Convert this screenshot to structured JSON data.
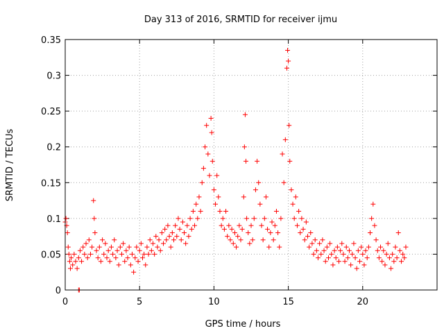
{
  "chart_data": {
    "type": "scatter",
    "title": "Day 313 of 2016, SRMTID for receiver ijmu",
    "xlabel": "GPS time / hours",
    "ylabel": "SRMTID / TECUs",
    "xlim": [
      0,
      25
    ],
    "ylim": [
      0,
      0.35
    ],
    "x_ticks": [
      0,
      5,
      10,
      15,
      20
    ],
    "x_tick_labels": [
      "0",
      "5",
      "10",
      "15",
      "20"
    ],
    "y_ticks": [
      0,
      0.05,
      0.1,
      0.15,
      0.2,
      0.25,
      0.3,
      0.35
    ],
    "y_tick_labels": [
      "0",
      "0.05",
      "0.1",
      "0.15",
      "0.2",
      "0.25",
      "0.3",
      "0.35"
    ],
    "grid": true,
    "marker": "+",
    "series": [
      {
        "name": "SRMTID",
        "color": "#ff0000",
        "points": [
          [
            0.0,
            0.095
          ],
          [
            0.05,
            0.1
          ],
          [
            0.1,
            0.09
          ],
          [
            0.15,
            0.08
          ],
          [
            0.2,
            0.06
          ],
          [
            0.25,
            0.05
          ],
          [
            0.3,
            0.04
          ],
          [
            0.35,
            0.03
          ],
          [
            0.4,
            0.045
          ],
          [
            0.5,
            0.035
          ],
          [
            0.6,
            0.05
          ],
          [
            0.7,
            0.04
          ],
          [
            0.8,
            0.03
          ],
          [
            0.9,
            0.045
          ],
          [
            1.0,
            0.055
          ],
          [
            1.1,
            0.04
          ],
          [
            1.2,
            0.06
          ],
          [
            1.3,
            0.05
          ],
          [
            1.4,
            0.065
          ],
          [
            1.5,
            0.045
          ],
          [
            1.6,
            0.07
          ],
          [
            1.7,
            0.05
          ],
          [
            1.8,
            0.06
          ],
          [
            1.9,
            0.125
          ],
          [
            1.95,
            0.1
          ],
          [
            2.0,
            0.08
          ],
          [
            2.1,
            0.055
          ],
          [
            2.2,
            0.045
          ],
          [
            2.3,
            0.06
          ],
          [
            2.4,
            0.04
          ],
          [
            2.5,
            0.07
          ],
          [
            2.6,
            0.05
          ],
          [
            2.7,
            0.065
          ],
          [
            2.8,
            0.045
          ],
          [
            2.9,
            0.055
          ],
          [
            3.0,
            0.04
          ],
          [
            3.1,
            0.06
          ],
          [
            3.2,
            0.05
          ],
          [
            3.3,
            0.07
          ],
          [
            3.4,
            0.045
          ],
          [
            3.5,
            0.055
          ],
          [
            3.6,
            0.035
          ],
          [
            3.7,
            0.06
          ],
          [
            3.8,
            0.05
          ],
          [
            3.9,
            0.065
          ],
          [
            4.0,
            0.04
          ],
          [
            4.1,
            0.055
          ],
          [
            4.2,
            0.045
          ],
          [
            4.3,
            0.06
          ],
          [
            4.4,
            0.035
          ],
          [
            4.5,
            0.05
          ],
          [
            4.6,
            0.025
          ],
          [
            4.7,
            0.045
          ],
          [
            4.8,
            0.06
          ],
          [
            4.9,
            0.04
          ],
          [
            5.0,
            0.055
          ],
          [
            5.1,
            0.065
          ],
          [
            5.2,
            0.045
          ],
          [
            5.3,
            0.05
          ],
          [
            5.4,
            0.035
          ],
          [
            5.5,
            0.06
          ],
          [
            5.6,
            0.05
          ],
          [
            5.7,
            0.07
          ],
          [
            5.8,
            0.055
          ],
          [
            5.9,
            0.065
          ],
          [
            6.0,
            0.05
          ],
          [
            6.1,
            0.075
          ],
          [
            6.2,
            0.06
          ],
          [
            6.3,
            0.07
          ],
          [
            6.4,
            0.055
          ],
          [
            6.5,
            0.08
          ],
          [
            6.6,
            0.065
          ],
          [
            6.7,
            0.085
          ],
          [
            6.8,
            0.07
          ],
          [
            6.9,
            0.09
          ],
          [
            7.0,
            0.075
          ],
          [
            7.1,
            0.06
          ],
          [
            7.2,
            0.08
          ],
          [
            7.3,
            0.07
          ],
          [
            7.4,
            0.09
          ],
          [
            7.5,
            0.075
          ],
          [
            7.6,
            0.1
          ],
          [
            7.7,
            0.085
          ],
          [
            7.8,
            0.07
          ],
          [
            7.9,
            0.095
          ],
          [
            8.0,
            0.08
          ],
          [
            8.1,
            0.065
          ],
          [
            8.2,
            0.09
          ],
          [
            8.3,
            0.075
          ],
          [
            8.4,
            0.1
          ],
          [
            8.5,
            0.085
          ],
          [
            8.6,
            0.11
          ],
          [
            8.7,
            0.09
          ],
          [
            8.8,
            0.12
          ],
          [
            8.9,
            0.1
          ],
          [
            9.0,
            0.13
          ],
          [
            9.1,
            0.11
          ],
          [
            9.2,
            0.15
          ],
          [
            9.3,
            0.17
          ],
          [
            9.4,
            0.2
          ],
          [
            9.5,
            0.23
          ],
          [
            9.6,
            0.19
          ],
          [
            9.7,
            0.16
          ],
          [
            9.8,
            0.24
          ],
          [
            9.85,
            0.22
          ],
          [
            9.9,
            0.18
          ],
          [
            10.0,
            0.14
          ],
          [
            10.1,
            0.12
          ],
          [
            10.2,
            0.16
          ],
          [
            10.3,
            0.13
          ],
          [
            10.4,
            0.11
          ],
          [
            10.5,
            0.09
          ],
          [
            10.6,
            0.1
          ],
          [
            10.7,
            0.085
          ],
          [
            10.8,
            0.11
          ],
          [
            10.9,
            0.075
          ],
          [
            11.0,
            0.09
          ],
          [
            11.1,
            0.07
          ],
          [
            11.2,
            0.085
          ],
          [
            11.3,
            0.065
          ],
          [
            11.4,
            0.08
          ],
          [
            11.5,
            0.06
          ],
          [
            11.6,
            0.075
          ],
          [
            11.7,
            0.09
          ],
          [
            11.8,
            0.07
          ],
          [
            11.9,
            0.085
          ],
          [
            12.0,
            0.13
          ],
          [
            12.05,
            0.2
          ],
          [
            12.1,
            0.245
          ],
          [
            12.15,
            0.18
          ],
          [
            12.2,
            0.1
          ],
          [
            12.3,
            0.08
          ],
          [
            12.4,
            0.065
          ],
          [
            12.5,
            0.09
          ],
          [
            12.6,
            0.07
          ],
          [
            12.7,
            0.1
          ],
          [
            12.8,
            0.14
          ],
          [
            12.9,
            0.18
          ],
          [
            13.0,
            0.15
          ],
          [
            13.1,
            0.12
          ],
          [
            13.2,
            0.09
          ],
          [
            13.3,
            0.07
          ],
          [
            13.4,
            0.1
          ],
          [
            13.5,
            0.13
          ],
          [
            13.6,
            0.085
          ],
          [
            13.7,
            0.06
          ],
          [
            13.8,
            0.08
          ],
          [
            13.9,
            0.095
          ],
          [
            14.0,
            0.07
          ],
          [
            14.1,
            0.09
          ],
          [
            14.2,
            0.11
          ],
          [
            14.3,
            0.08
          ],
          [
            14.4,
            0.06
          ],
          [
            14.5,
            0.1
          ],
          [
            14.6,
            0.19
          ],
          [
            14.7,
            0.15
          ],
          [
            14.8,
            0.21
          ],
          [
            14.9,
            0.31
          ],
          [
            14.95,
            0.335
          ],
          [
            15.0,
            0.32
          ],
          [
            15.05,
            0.23
          ],
          [
            15.1,
            0.18
          ],
          [
            15.2,
            0.14
          ],
          [
            15.3,
            0.12
          ],
          [
            15.4,
            0.1
          ],
          [
            15.5,
            0.13
          ],
          [
            15.6,
            0.09
          ],
          [
            15.7,
            0.11
          ],
          [
            15.8,
            0.08
          ],
          [
            15.9,
            0.1
          ],
          [
            16.0,
            0.085
          ],
          [
            16.1,
            0.07
          ],
          [
            16.2,
            0.095
          ],
          [
            16.3,
            0.075
          ],
          [
            16.4,
            0.06
          ],
          [
            16.5,
            0.08
          ],
          [
            16.6,
            0.065
          ],
          [
            16.7,
            0.05
          ],
          [
            16.8,
            0.07
          ],
          [
            16.9,
            0.055
          ],
          [
            17.0,
            0.045
          ],
          [
            17.1,
            0.065
          ],
          [
            17.2,
            0.05
          ],
          [
            17.3,
            0.07
          ],
          [
            17.4,
            0.055
          ],
          [
            17.5,
            0.04
          ],
          [
            17.6,
            0.06
          ],
          [
            17.7,
            0.045
          ],
          [
            17.8,
            0.065
          ],
          [
            17.9,
            0.05
          ],
          [
            18.0,
            0.035
          ],
          [
            18.1,
            0.055
          ],
          [
            18.2,
            0.045
          ],
          [
            18.3,
            0.06
          ],
          [
            18.4,
            0.04
          ],
          [
            18.5,
            0.055
          ],
          [
            18.6,
            0.065
          ],
          [
            18.7,
            0.05
          ],
          [
            18.8,
            0.04
          ],
          [
            18.9,
            0.06
          ],
          [
            19.0,
            0.045
          ],
          [
            19.1,
            0.055
          ],
          [
            19.2,
            0.035
          ],
          [
            19.3,
            0.05
          ],
          [
            19.4,
            0.065
          ],
          [
            19.5,
            0.045
          ],
          [
            19.6,
            0.03
          ],
          [
            19.7,
            0.055
          ],
          [
            19.8,
            0.04
          ],
          [
            19.9,
            0.06
          ],
          [
            20.0,
            0.05
          ],
          [
            20.1,
            0.035
          ],
          [
            20.2,
            0.055
          ],
          [
            20.3,
            0.045
          ],
          [
            20.4,
            0.06
          ],
          [
            20.5,
            0.08
          ],
          [
            20.6,
            0.1
          ],
          [
            20.7,
            0.12
          ],
          [
            20.8,
            0.09
          ],
          [
            20.9,
            0.07
          ],
          [
            21.0,
            0.055
          ],
          [
            21.1,
            0.045
          ],
          [
            21.2,
            0.06
          ],
          [
            21.3,
            0.04
          ],
          [
            21.4,
            0.055
          ],
          [
            21.5,
            0.035
          ],
          [
            21.6,
            0.05
          ],
          [
            21.7,
            0.065
          ],
          [
            21.8,
            0.045
          ],
          [
            21.9,
            0.03
          ],
          [
            22.0,
            0.05
          ],
          [
            22.1,
            0.04
          ],
          [
            22.2,
            0.06
          ],
          [
            22.3,
            0.045
          ],
          [
            22.4,
            0.08
          ],
          [
            22.5,
            0.055
          ],
          [
            22.6,
            0.04
          ],
          [
            22.7,
            0.05
          ],
          [
            22.8,
            0.045
          ],
          [
            22.9,
            0.06
          ],
          [
            0.9,
            0.0
          ],
          [
            0.95,
            0.0
          ]
        ]
      }
    ]
  }
}
